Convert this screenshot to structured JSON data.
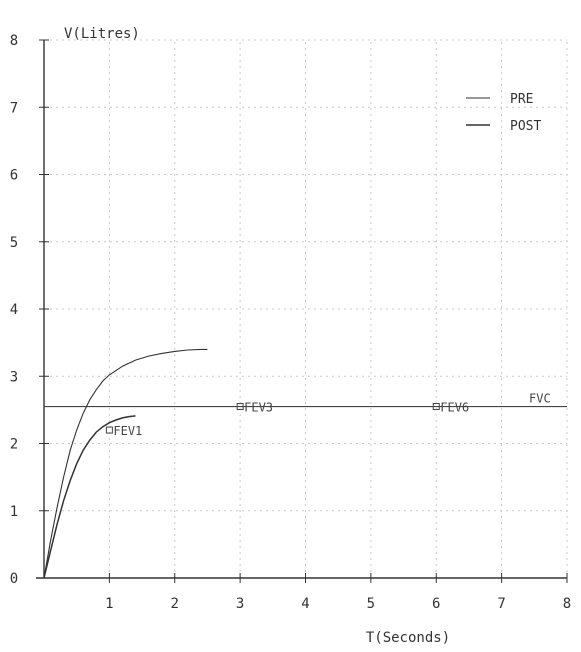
{
  "chart_data": {
    "type": "line",
    "title": "",
    "xlabel": "T(Seconds)",
    "ylabel": "V(Litres)",
    "xlim": [
      0,
      8
    ],
    "ylim": [
      0,
      8
    ],
    "x_ticks": [
      "1",
      "2",
      "3",
      "4",
      "5",
      "6",
      "7",
      "8"
    ],
    "y_ticks": [
      "0",
      "1",
      "2",
      "3",
      "4",
      "5",
      "6",
      "7",
      "8"
    ],
    "grid": true,
    "legend": {
      "placement": "top-right",
      "entries": [
        "PRE",
        "POST"
      ]
    },
    "series": [
      {
        "name": "PRE",
        "x": [
          0,
          0.1,
          0.2,
          0.3,
          0.4,
          0.5,
          0.6,
          0.7,
          0.8,
          0.9,
          1.0,
          1.2,
          1.4,
          1.6,
          1.8,
          2.0,
          2.2,
          2.4,
          2.5
        ],
        "y": [
          0,
          0.55,
          1.05,
          1.5,
          1.9,
          2.2,
          2.45,
          2.65,
          2.8,
          2.93,
          3.02,
          3.15,
          3.24,
          3.3,
          3.34,
          3.37,
          3.39,
          3.4,
          3.4
        ]
      },
      {
        "name": "POST",
        "x": [
          0,
          0.1,
          0.2,
          0.3,
          0.4,
          0.5,
          0.6,
          0.7,
          0.8,
          0.9,
          1.0,
          1.1,
          1.2,
          1.3,
          1.4
        ],
        "y": [
          0,
          0.4,
          0.8,
          1.15,
          1.45,
          1.7,
          1.9,
          2.05,
          2.17,
          2.25,
          2.31,
          2.35,
          2.38,
          2.4,
          2.41
        ]
      }
    ],
    "reference_line": {
      "y": 2.55,
      "x_start": 0,
      "x_end": 8
    },
    "annotations": [
      {
        "text": "FEV1",
        "x": 1.0,
        "y": 2.2
      },
      {
        "text": "FEV3",
        "x": 3.0,
        "y": 2.55
      },
      {
        "text": "FEV6",
        "x": 6.0,
        "y": 2.55
      },
      {
        "text": "FVC",
        "x": 8.0,
        "y": 2.55
      }
    ],
    "colors": {
      "line": "#333333",
      "grid": "#c9c9c9"
    }
  }
}
